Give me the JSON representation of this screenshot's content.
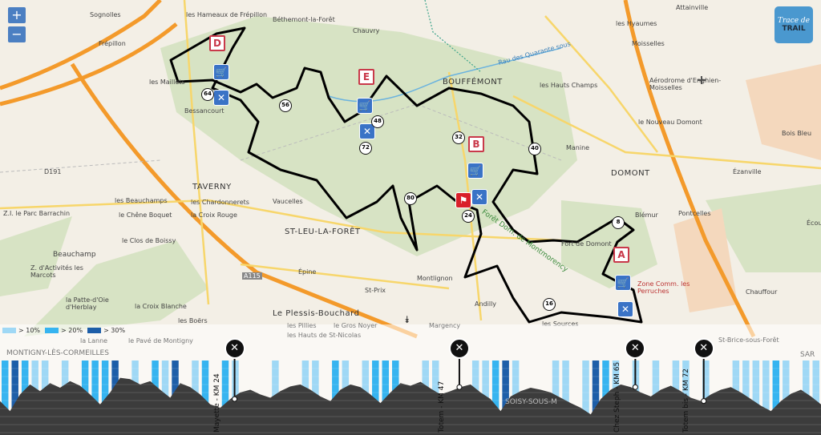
{
  "map": {
    "places": [
      "Sognolles",
      "les Hameaux de Frépillon",
      "Béthemont-la-Forêt",
      "Chauvry",
      "Frépillon",
      "BOUFFÉMONT",
      "les Maillets",
      "Bessancourt",
      "Rau des Quarante sous",
      "Moisselles",
      "Attainville",
      "les Hyaumes",
      "les Hauts Champs",
      "Aérodrome d'Enghien-Moisselles",
      "le Nouveau Domont",
      "Bois Bleu",
      "Manine",
      "DOMONT",
      "Ézanville",
      "TAVERNY",
      "D191",
      "les Beauchamps",
      "les Chardonnerets",
      "Vaucelles",
      "Z.I. le Parc Barrachin",
      "le Chêne Boquet",
      "la Croix Rouge",
      "ST-LEU-LA-FORÊT",
      "le Clos de Boissy",
      "Beauchamp",
      "Z. d'Activités les Marcots",
      "Blémur",
      "Pontcelles",
      "Fort de Domont",
      "Zone Comm. les Perruches",
      "Chauffour",
      "Montlignon",
      "Épine",
      "St-Prix",
      "la Patte-d'Oie d'Herblay",
      "la Croix Blanche",
      "Le Plessis-Bouchard",
      "les Boërs",
      "Andilly",
      "les Sources",
      "Forêt Dom. de Montmorency",
      "A115",
      "Écou",
      "MONTIGNY-LÈS-CORMEILLES",
      "le Pavé de Montigny",
      "la Lanne",
      "les Pillies",
      "le Gros Noyer",
      "les Hauts de St-Nicolas",
      "Margency",
      "St-Brice-sous-Forêt",
      "SAR",
      "SOISY-SOUS-M"
    ],
    "zoom_in": "+",
    "zoom_out": "−",
    "logo": {
      "line1": "Trace de",
      "line2": "TRAIL"
    },
    "aid_letters": [
      "D",
      "E",
      "B",
      "A"
    ],
    "km_markers": [
      "64",
      "56",
      "48",
      "72",
      "32",
      "40",
      "80",
      "24",
      "8",
      "16"
    ],
    "route_color": "#000000",
    "forest_color": "#d7e3c4"
  },
  "profile": {
    "collapse_icon": "chevrons-down-icon",
    "legend": [
      {
        "label": "> 10%",
        "color": "#9fd8f5"
      },
      {
        "label": "> 20%",
        "color": "#36b4f0"
      },
      {
        "label": "> 30%",
        "color": "#1d5ea8"
      }
    ],
    "fill_color": "#3c3c3c",
    "waypoints": [
      {
        "label": "Mayette - KM 24",
        "km": 24
      },
      {
        "label": "Totem - KM 47",
        "km": 47
      },
      {
        "label": "Chez Steph - KM 65",
        "km": 65
      },
      {
        "label": "Totem bis - KM 72",
        "km": 72
      }
    ],
    "total_km": 84,
    "elevation_relative": [
      45,
      30,
      55,
      70,
      60,
      72,
      65,
      75,
      68,
      55,
      40,
      58,
      80,
      78,
      70,
      75,
      62,
      50,
      72,
      66,
      55,
      40,
      35,
      48,
      58,
      62,
      55,
      50,
      60,
      67,
      70,
      62,
      52,
      45,
      62,
      70,
      66,
      55,
      42,
      58,
      72,
      68,
      74,
      64,
      55,
      60,
      66,
      70,
      58,
      48,
      30,
      52,
      60,
      65,
      62,
      58,
      50,
      42,
      35,
      25,
      48,
      62,
      70,
      66,
      58,
      52,
      62,
      68,
      60,
      50,
      45,
      55,
      62,
      66,
      58,
      48,
      38,
      30,
      45,
      56,
      62,
      52,
      40
    ]
  }
}
